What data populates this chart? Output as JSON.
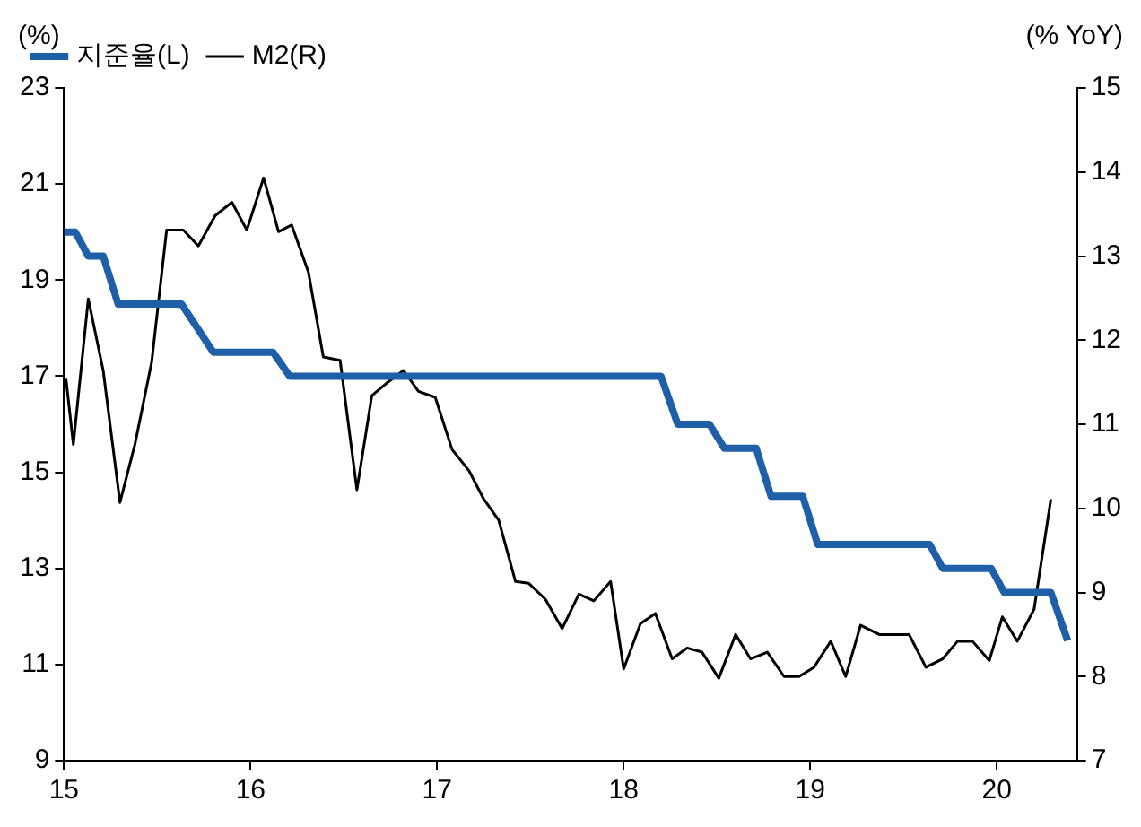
{
  "chart_data": {
    "type": "line",
    "ylabel": "(%)",
    "y2label": "(% YoY)",
    "xlim": [
      15,
      20.43
    ],
    "xticks": [
      15,
      16,
      17,
      18,
      19,
      20
    ],
    "ylim": [
      9,
      23
    ],
    "yticks": [
      9,
      11,
      13,
      15,
      17,
      19,
      21,
      23
    ],
    "y2lim": [
      7,
      15
    ],
    "y2ticks": [
      7,
      8,
      9,
      10,
      11,
      12,
      13,
      14,
      15
    ],
    "grid": false,
    "legend": "top left",
    "marker": "none",
    "line_style": "solid",
    "series": [
      {
        "name": "지준율(L)",
        "color": "#1f5fa8",
        "axis": "y",
        "x": [
          15.0,
          15.06,
          15.13,
          15.21,
          15.29,
          15.63,
          15.8,
          16.12,
          16.21,
          18.2,
          18.29,
          18.46,
          18.54,
          18.71,
          18.79,
          18.96,
          19.04,
          19.64,
          19.71,
          19.97,
          20.04,
          20.29,
          20.38
        ],
        "values": [
          20,
          20,
          19.5,
          19.5,
          18.5,
          18.5,
          17.5,
          17.5,
          17,
          17,
          16,
          16,
          15.5,
          15.5,
          14.5,
          14.5,
          13.5,
          13.5,
          13,
          13,
          12.5,
          12.5,
          11.5
        ]
      },
      {
        "name": "M2(R)",
        "color": "#000000",
        "axis": "y2",
        "x": [
          15.01,
          15.05,
          15.13,
          15.21,
          15.3,
          15.38,
          15.47,
          15.55,
          15.64,
          15.72,
          15.81,
          15.9,
          15.98,
          16.07,
          16.15,
          16.22,
          16.31,
          16.39,
          16.48,
          16.57,
          16.65,
          16.73,
          16.82,
          16.9,
          16.99,
          17.08,
          17.17,
          17.25,
          17.33,
          17.42,
          17.49,
          17.58,
          17.67,
          17.76,
          17.84,
          17.93,
          18.0,
          18.09,
          18.17,
          18.26,
          18.34,
          18.42,
          18.51,
          18.6,
          18.68,
          18.77,
          18.86,
          18.94,
          19.02,
          19.11,
          19.19,
          19.27,
          19.37,
          19.45,
          19.53,
          19.62,
          19.71,
          19.79,
          19.87,
          19.96,
          20.03,
          20.11,
          20.2,
          20.29
        ],
        "values": [
          11.55,
          10.76,
          12.49,
          11.64,
          10.07,
          10.76,
          11.74,
          13.31,
          13.31,
          13.12,
          13.48,
          13.64,
          13.31,
          13.93,
          13.29,
          13.37,
          12.81,
          11.8,
          11.76,
          10.22,
          11.34,
          11.49,
          11.64,
          11.39,
          11.32,
          10.7,
          10.45,
          10.11,
          9.86,
          9.13,
          9.11,
          8.92,
          8.57,
          8.98,
          8.9,
          9.13,
          8.09,
          8.63,
          8.75,
          8.21,
          8.34,
          8.29,
          7.98,
          8.5,
          8.21,
          8.29,
          8.0,
          8.0,
          8.11,
          8.42,
          8.0,
          8.61,
          8.5,
          8.5,
          8.5,
          8.11,
          8.21,
          8.42,
          8.42,
          8.19,
          8.71,
          8.42,
          8.8,
          10.11
        ]
      }
    ]
  }
}
